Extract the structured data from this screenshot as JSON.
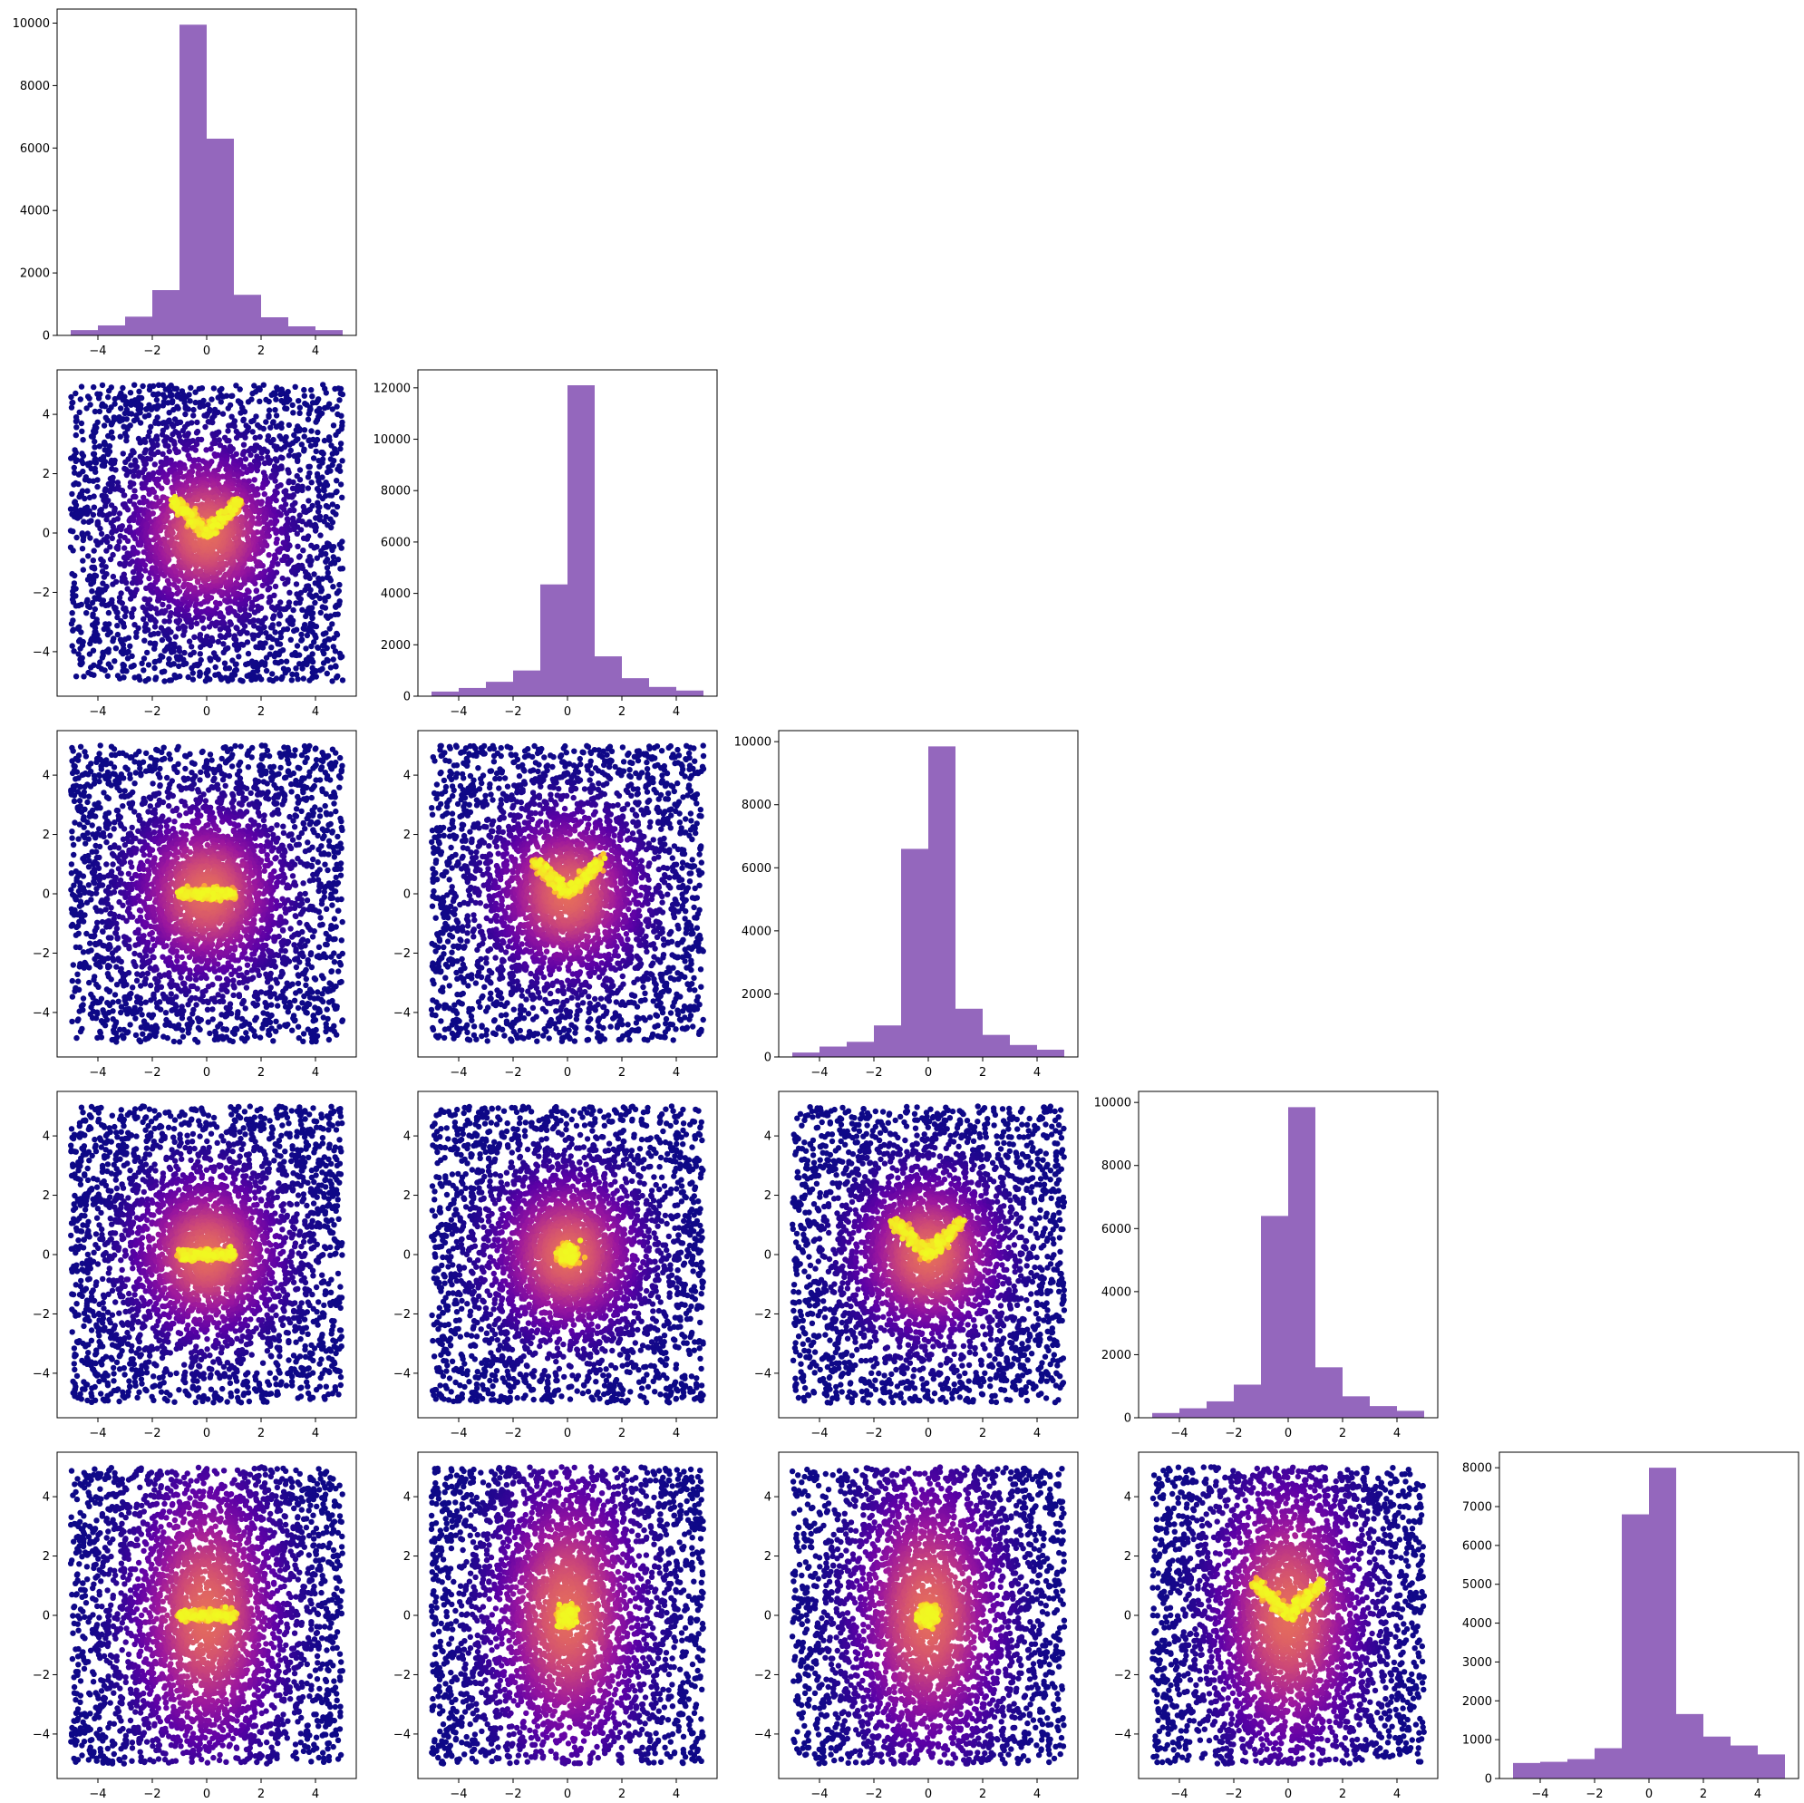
{
  "chart_data": {
    "type": "corner-plot",
    "grid": false,
    "n_variables": 5,
    "scatter_colormap": "plasma",
    "scatter_colormap_stops": [
      "#0d0887",
      "#5c01a6",
      "#9c179e",
      "#cc4778",
      "#ed7953",
      "#fdb42f",
      "#f0f921"
    ],
    "hist_color": "#9467bd",
    "x_ticks": [
      -4,
      -2,
      0,
      2,
      4
    ],
    "y_ticks_scatter": [
      -4,
      -2,
      0,
      2,
      4
    ],
    "xlim": [
      -5.5,
      5.5
    ],
    "ylim_scatter": [
      -5.5,
      5.5
    ],
    "histograms": [
      {
        "variable": 1,
        "bin_edges": [
          -5,
          -4,
          -3,
          -2,
          -1,
          0,
          1,
          2,
          3,
          4,
          5
        ],
        "counts": [
          170,
          320,
          600,
          1450,
          9950,
          6300,
          1300,
          580,
          290,
          170
        ],
        "ylim": [
          0,
          10450
        ],
        "y_ticks": [
          0,
          2000,
          4000,
          6000,
          8000,
          10000
        ]
      },
      {
        "variable": 2,
        "bin_edges": [
          -5,
          -4,
          -3,
          -2,
          -1,
          0,
          1,
          2,
          3,
          4,
          5
        ],
        "counts": [
          180,
          320,
          560,
          1000,
          4350,
          12100,
          1550,
          700,
          360,
          220
        ],
        "ylim": [
          0,
          12700
        ],
        "y_ticks": [
          0,
          2000,
          4000,
          6000,
          8000,
          10000,
          12000
        ]
      },
      {
        "variable": 3,
        "bin_edges": [
          -5,
          -4,
          -3,
          -2,
          -1,
          0,
          1,
          2,
          3,
          4,
          5
        ],
        "counts": [
          140,
          330,
          480,
          1000,
          6600,
          9850,
          1530,
          700,
          380,
          230
        ],
        "ylim": [
          0,
          10350
        ],
        "y_ticks": [
          0,
          2000,
          4000,
          6000,
          8000,
          10000
        ]
      },
      {
        "variable": 4,
        "bin_edges": [
          -5,
          -4,
          -3,
          -2,
          -1,
          0,
          1,
          2,
          3,
          4,
          5
        ],
        "counts": [
          150,
          300,
          520,
          1050,
          6400,
          9850,
          1600,
          680,
          370,
          220
        ],
        "ylim": [
          0,
          10350
        ],
        "y_ticks": [
          0,
          2000,
          4000,
          6000,
          8000,
          10000
        ]
      },
      {
        "variable": 5,
        "bin_edges": [
          -5,
          -4,
          -3,
          -2,
          -1,
          0,
          1,
          2,
          3,
          4,
          5
        ],
        "counts": [
          400,
          430,
          500,
          780,
          6800,
          8000,
          1660,
          1080,
          850,
          620
        ],
        "ylim": [
          0,
          8400
        ],
        "y_ticks": [
          0,
          1000,
          2000,
          3000,
          4000,
          5000,
          6000,
          7000,
          8000
        ]
      }
    ],
    "scatter_panels": [
      {
        "x_variable": 1,
        "y_variable": 2,
        "core_shape": "v"
      },
      {
        "x_variable": 1,
        "y_variable": 3,
        "core_shape": "bar"
      },
      {
        "x_variable": 2,
        "y_variable": 3,
        "core_shape": "v"
      },
      {
        "x_variable": 1,
        "y_variable": 4,
        "core_shape": "bar"
      },
      {
        "x_variable": 2,
        "y_variable": 4,
        "core_shape": "dot"
      },
      {
        "x_variable": 3,
        "y_variable": 4,
        "core_shape": "v"
      },
      {
        "x_variable": 1,
        "y_variable": 5,
        "core_shape": "bar"
      },
      {
        "x_variable": 2,
        "y_variable": 5,
        "core_shape": "dot"
      },
      {
        "x_variable": 3,
        "y_variable": 5,
        "core_shape": "dot"
      },
      {
        "x_variable": 4,
        "y_variable": 5,
        "core_shape": "v"
      }
    ]
  }
}
